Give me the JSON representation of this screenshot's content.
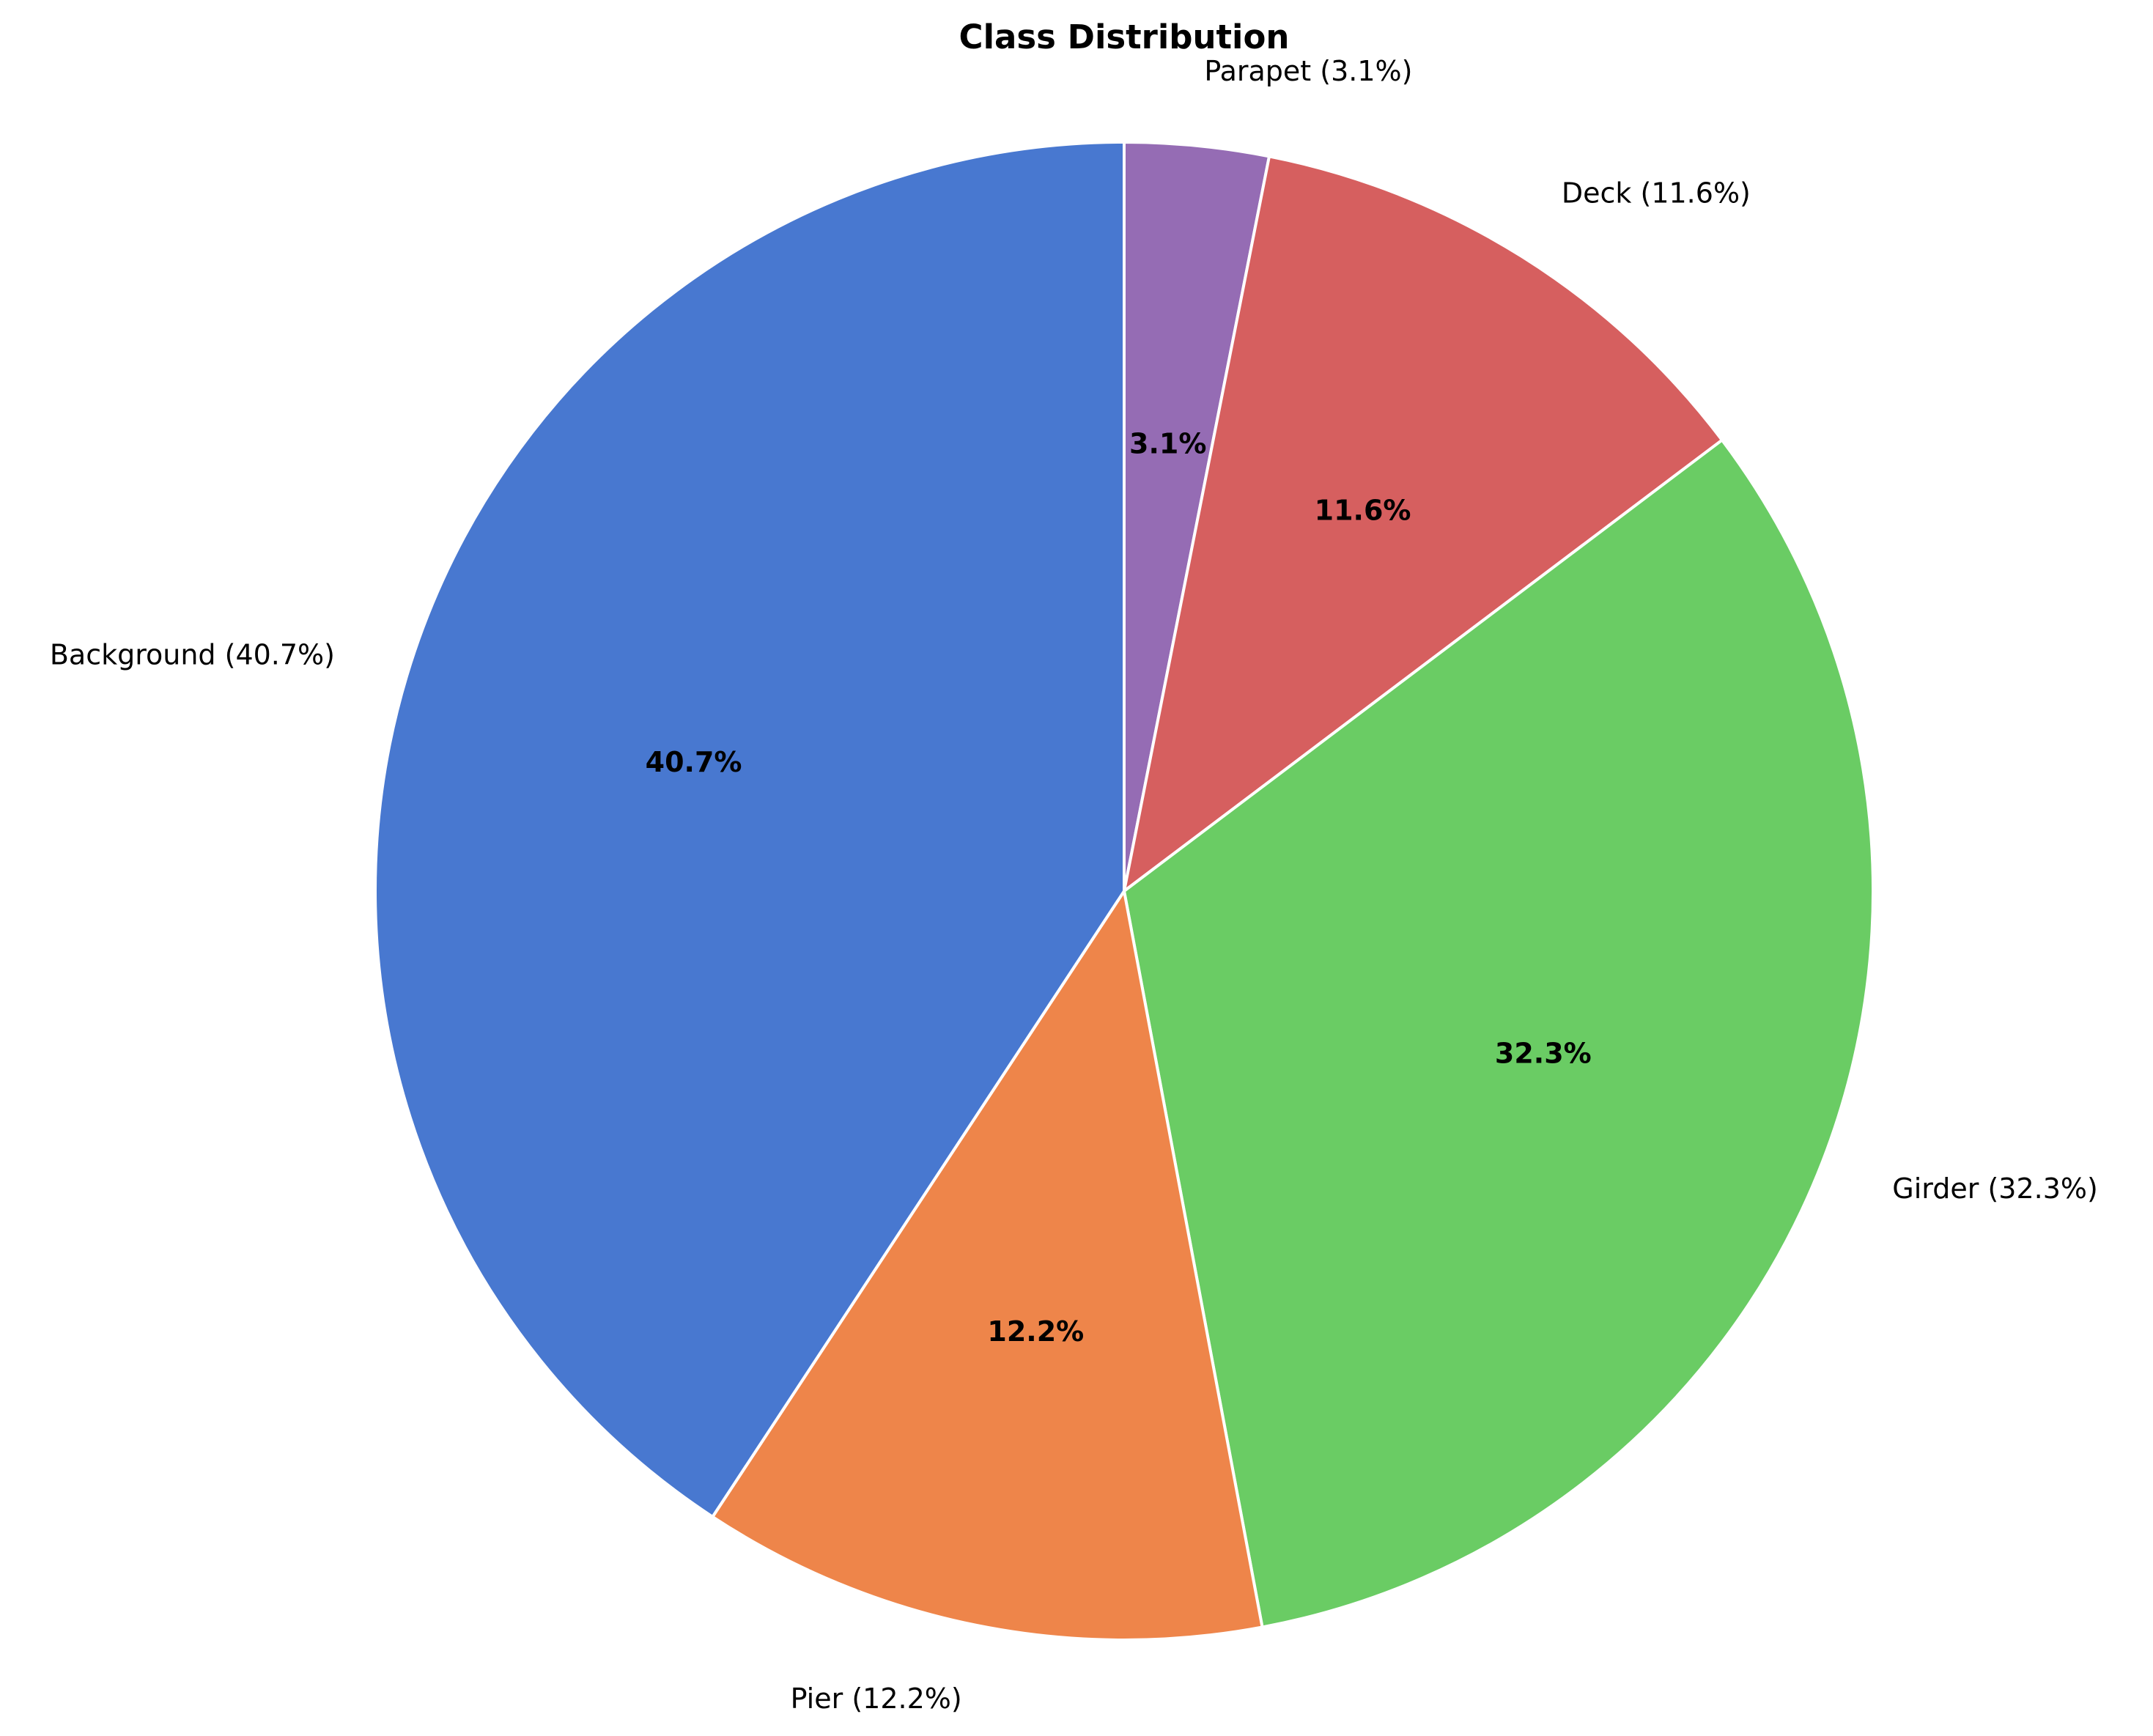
{
  "chart_data": {
    "type": "pie",
    "title": "Class Distribution",
    "start_angle_deg": 90,
    "direction": "clockwise",
    "slice_edge_color": "#ffffff",
    "slices": [
      {
        "name": "Parapet",
        "value": 3.1,
        "label": "Parapet (3.1%)",
        "pct_label": "3.1%",
        "color": "#956cb4"
      },
      {
        "name": "Deck",
        "value": 11.6,
        "label": "Deck (11.6%)",
        "pct_label": "11.6%",
        "color": "#d65f5f"
      },
      {
        "name": "Girder",
        "value": 32.3,
        "label": "Girder (32.3%)",
        "pct_label": "32.3%",
        "color": "#6acc64"
      },
      {
        "name": "Pier",
        "value": 12.2,
        "label": "Pier (12.2%)",
        "pct_label": "12.2%",
        "color": "#ee854a"
      },
      {
        "name": "Background",
        "value": 40.7,
        "label": "Background (40.7%)",
        "pct_label": "40.7%",
        "color": "#4878d0"
      }
    ]
  }
}
